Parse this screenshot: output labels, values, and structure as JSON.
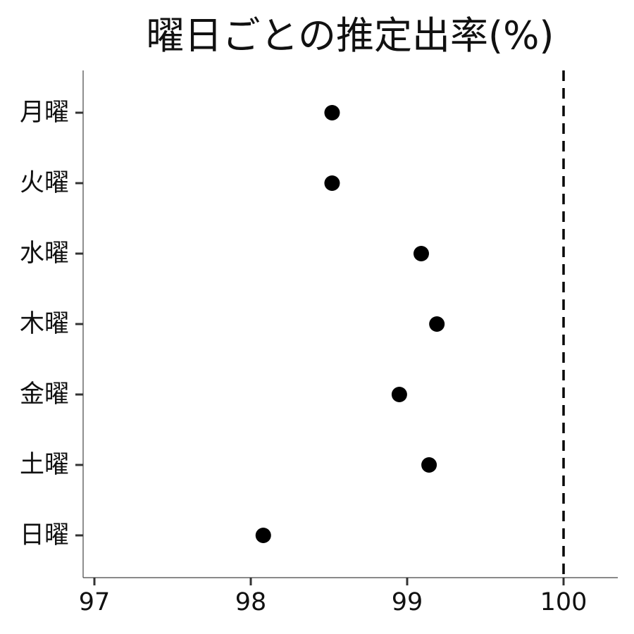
{
  "chart_data": {
    "type": "scatter",
    "title": "曜日ごとの推定出率(%)",
    "xlabel": "",
    "ylabel": "",
    "categories": [
      "月曜",
      "火曜",
      "水曜",
      "木曜",
      "金曜",
      "土曜",
      "日曜"
    ],
    "values": [
      98.52,
      98.52,
      99.09,
      99.19,
      98.95,
      99.14,
      98.08
    ],
    "xlim": [
      96.93,
      100.35
    ],
    "xticks": [
      "97",
      "98",
      "99",
      "100"
    ],
    "reference_line": {
      "x": 100,
      "style": "dashed"
    },
    "grid": false,
    "legend": "none",
    "colors": {
      "point": "#000000",
      "axis": "#444444",
      "text": "#111111"
    }
  }
}
